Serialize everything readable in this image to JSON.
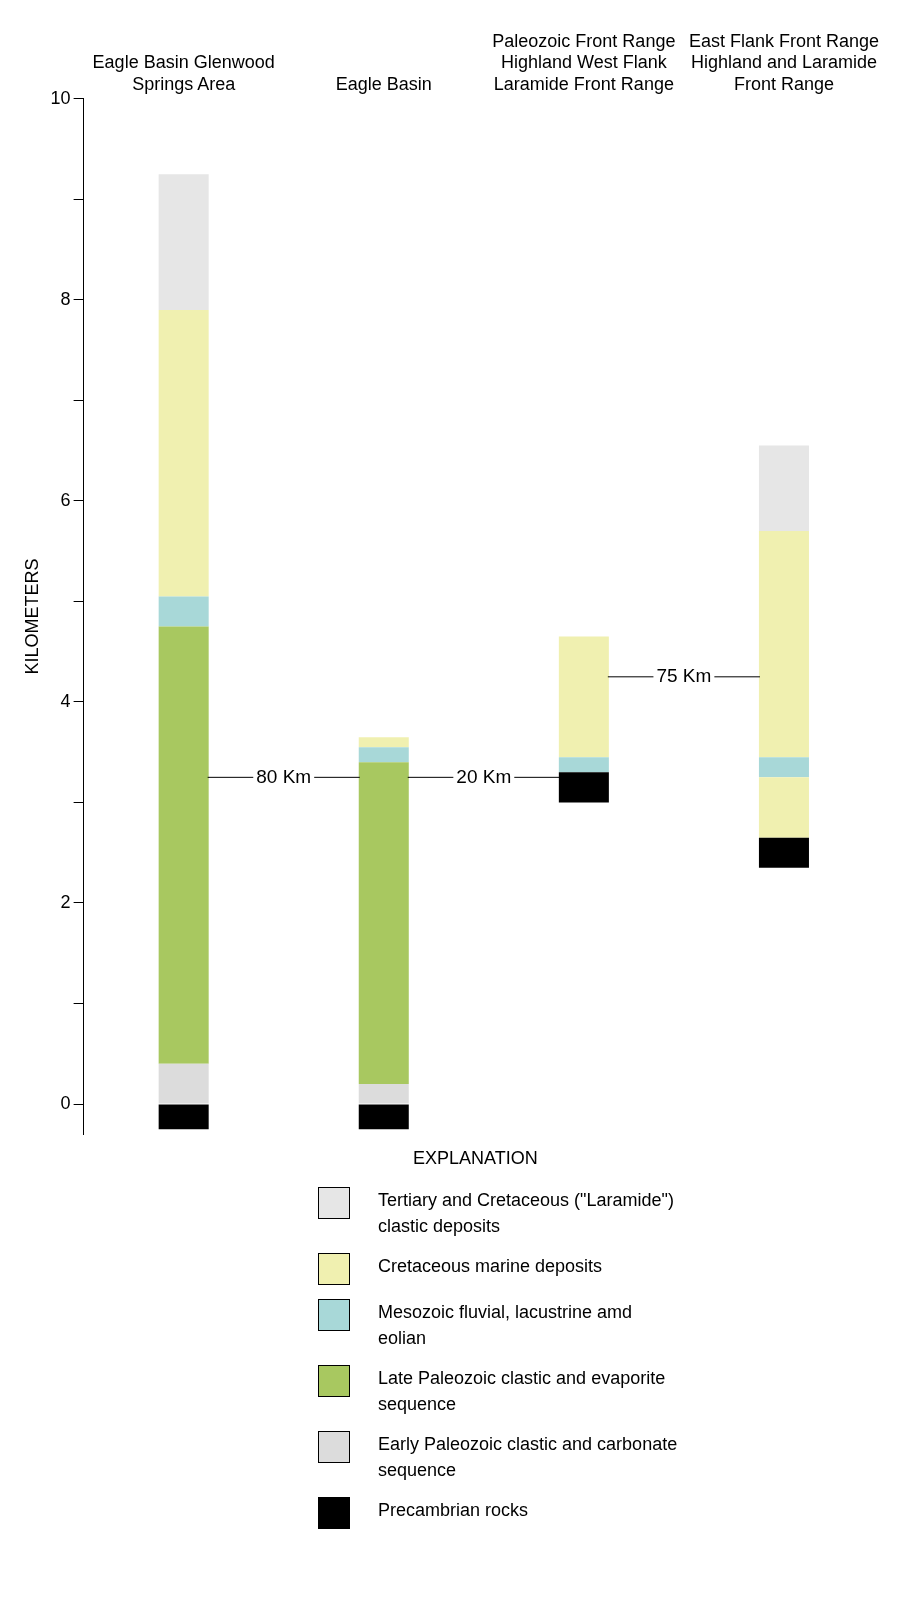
{
  "chart_data": {
    "type": "bar",
    "ylabel": "KILOMETERS",
    "legend_title": "EXPLANATION",
    "legend": "bottom",
    "grid": false,
    "categories": [
      "Eagle Basin Glenwood Springs Area",
      "Eagle Basin",
      "Paleozoic Front Range Highland West Flank Laramide Front Range",
      "East Flank Front Range Highland and Laramide Front Range"
    ],
    "ylim": [
      -0.3,
      10
    ],
    "yticks": [
      0,
      {
        "value": 1,
        "label": null
      },
      2,
      {
        "value": 3,
        "label": null
      },
      4,
      {
        "value": 5,
        "label": null
      },
      6,
      {
        "value": 7,
        "label": null
      },
      8,
      {
        "value": 9,
        "label": null
      },
      10
    ],
    "series": [
      {
        "name": "Precambrian rocks",
        "color": "#000000",
        "base": [
          -0.25,
          -0.25,
          3.0,
          2.35
        ],
        "values": [
          0.25,
          0.25,
          0.3,
          0.3
        ]
      },
      {
        "name": "Early Paleozoic clastic and carbonate sequence",
        "color": "#dcdcdc",
        "base": [
          0,
          0,
          null,
          null
        ],
        "values": [
          0.4,
          0.2,
          null,
          null
        ]
      },
      {
        "name": "Late Paleozoic clastic and evaporite sequence",
        "color": "#a8c860",
        "base": [
          0.4,
          0.2,
          null,
          null
        ],
        "values": [
          4.35,
          3.2,
          null,
          null
        ]
      },
      {
        "color": "#f0f0b0",
        "base": [
          null,
          null,
          null,
          2.65
        ],
        "values": [
          null,
          null,
          null,
          0.6
        ]
      },
      {
        "name": "Mesozoic fluvial, lacustrine amd eolian",
        "color": "#a8d8d8",
        "base": [
          4.75,
          3.4,
          3.3,
          3.25
        ],
        "values": [
          0.3,
          0.15,
          0.15,
          0.2
        ]
      },
      {
        "name": "Cretaceous marine deposits",
        "color": "#f0f0b0",
        "base": [
          5.05,
          3.55,
          3.45,
          3.45
        ],
        "values": [
          2.85,
          0.1,
          1.2,
          2.25
        ]
      },
      {
        "name": "Tertiary and Cretaceous (\"Laramide\") clastic deposits",
        "color": "#e6e6e6",
        "base": [
          7.9,
          null,
          null,
          5.7
        ],
        "values": [
          1.35,
          null,
          null,
          0.85
        ]
      }
    ],
    "annotations": [
      "80 Km",
      "20 Km",
      "75 Km"
    ]
  }
}
